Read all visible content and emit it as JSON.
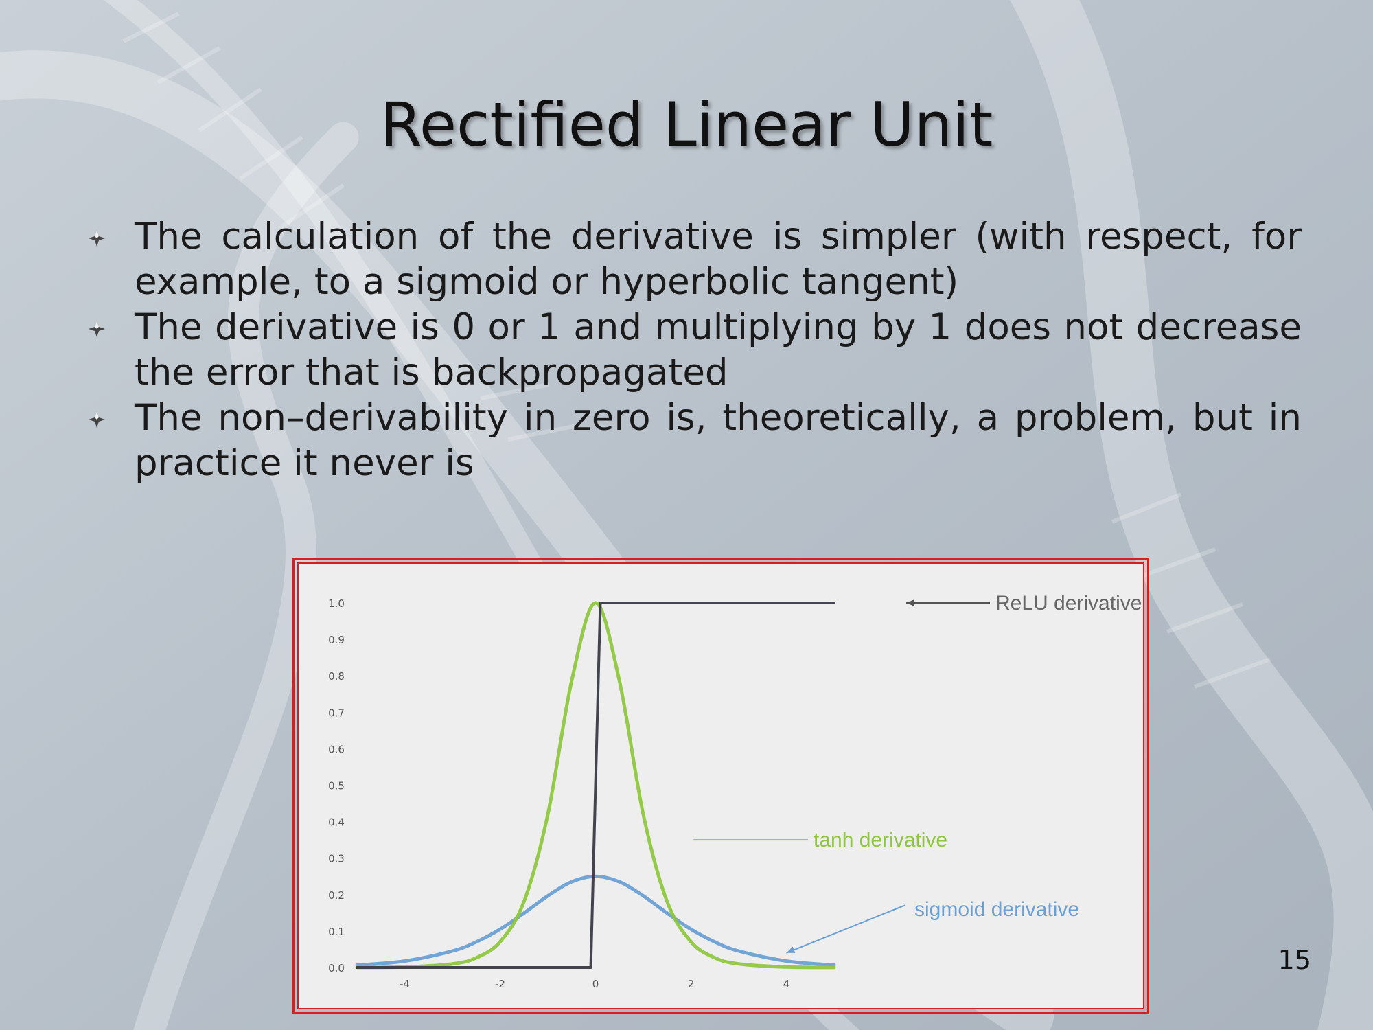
{
  "slide": {
    "title": "Rectified Linear Unit",
    "page_number": "15",
    "bullets": [
      "The calculation of the derivative is simpler (with respect, for example, to a sigmoid or hyperbolic tangent)",
      "The derivative is 0 or 1 and multiplying by 1 does not decrease the error that is backpropagated",
      "The non–derivability in zero is, theoretically, a problem, but in practice it never is"
    ],
    "colors": {
      "background": "#bcc4cc",
      "title": "#111111",
      "frame": "#d62020",
      "plot_background": "#eeeeee"
    }
  },
  "chart_data": {
    "type": "line",
    "title": "",
    "xlabel": "",
    "ylabel": "",
    "xlim": [
      -5,
      5
    ],
    "ylim": [
      0,
      1.0
    ],
    "x_ticks": [
      -4,
      -2,
      0,
      2,
      4
    ],
    "x_tick_labels": [
      "-4",
      "-2",
      "0",
      "2",
      "4"
    ],
    "y_ticks": [
      0.0,
      0.1,
      0.2,
      0.3,
      0.4,
      0.5,
      0.6,
      0.7,
      0.8,
      0.9,
      1.0
    ],
    "y_tick_labels": [
      "0.0",
      "0.1",
      "0.2",
      "0.3",
      "0.4",
      "0.5",
      "0.6",
      "0.7",
      "0.8",
      "0.9",
      "1.0"
    ],
    "grid": false,
    "series": [
      {
        "name": "ReLU derivative",
        "color": "#3a3a44",
        "x": [
          -5,
          -0.1,
          0,
          0.1,
          5
        ],
        "y": [
          0,
          0,
          0.5,
          1,
          1
        ]
      },
      {
        "name": "tanh derivative",
        "color": "#8ec63f",
        "x": [
          -5,
          -4,
          -3,
          -2.5,
          -2,
          -1.5,
          -1,
          -0.5,
          0,
          0.5,
          1,
          1.5,
          2,
          2.5,
          3,
          4,
          5
        ],
        "y": [
          0.0002,
          0.0013,
          0.0099,
          0.0266,
          0.0707,
          0.1807,
          0.42,
          0.7864,
          1.0,
          0.7864,
          0.42,
          0.1807,
          0.0707,
          0.0266,
          0.0099,
          0.0013,
          0.0002
        ]
      },
      {
        "name": "sigmoid derivative",
        "color": "#6a9fd4",
        "x": [
          -5,
          -4,
          -3,
          -2.5,
          -2,
          -1.5,
          -1,
          -0.5,
          0,
          0.5,
          1,
          1.5,
          2,
          2.5,
          3,
          4,
          5
        ],
        "y": [
          0.0066,
          0.0177,
          0.0452,
          0.0701,
          0.105,
          0.1491,
          0.1966,
          0.235,
          0.25,
          0.235,
          0.1966,
          0.1491,
          0.105,
          0.0701,
          0.0452,
          0.0177,
          0.0066
        ]
      }
    ],
    "annotations": [
      {
        "text": "ReLU derivative",
        "series": "ReLU derivative",
        "x": 4.2,
        "y": 1.0
      },
      {
        "text": "tanh derivative",
        "series": "tanh derivative",
        "x": 1.3,
        "y": 0.35
      },
      {
        "text": "sigmoid derivative",
        "series": "sigmoid derivative",
        "x": 4.0,
        "y": 0.04
      }
    ]
  }
}
